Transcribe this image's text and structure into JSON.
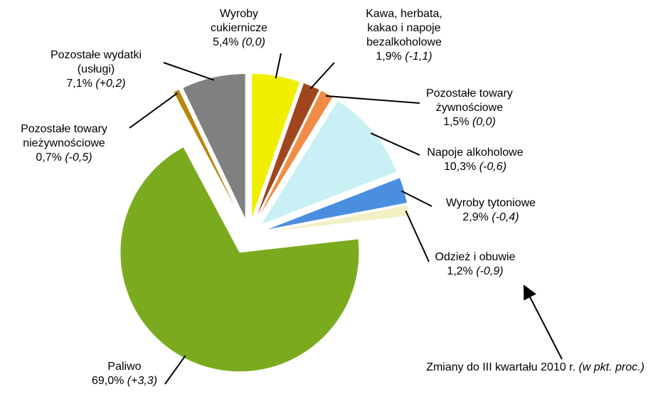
{
  "chart_data": {
    "type": "pie",
    "categories": [
      "Wyroby\ncukiernicze",
      "Kawa, herbata,\nkakao i napoje\nbezalkoholowe",
      "Pozostałe towary\nżywnościowe",
      "Napoje alkoholowe",
      "Wyroby tytoniowe",
      "Odzież i obuwie",
      "Paliwo",
      "Pozostałe towary\nnieżywnościowe",
      "Pozostałe wydatki\n(usługi)"
    ],
    "values": [
      5.4,
      1.9,
      1.5,
      10.3,
      2.9,
      1.2,
      69.0,
      0.7,
      7.1
    ],
    "value_labels": [
      "5,4%",
      "1,9%",
      "1,5%",
      "10,3%",
      "2,9%",
      "1,2%",
      "69,0%",
      "0,7%",
      "7,1%"
    ],
    "change_labels": [
      "(0,0)",
      "(-1,1)",
      "(0,0)",
      "(-0,6)",
      "(-0,4)",
      "(-0,9)",
      "(+3,3)",
      "(-0,5)",
      "(+0,2)"
    ],
    "colors": [
      "#f2ee00",
      "#a0461e",
      "#f08c46",
      "#c8f0f5",
      "#4a8ee0",
      "#f2f0c4",
      "#7aab1e",
      "#b8860b",
      "#808080"
    ],
    "annotation": "Zmiany do III kwartału 2010 r.",
    "annotation_note": "(w pkt. proc.)"
  }
}
